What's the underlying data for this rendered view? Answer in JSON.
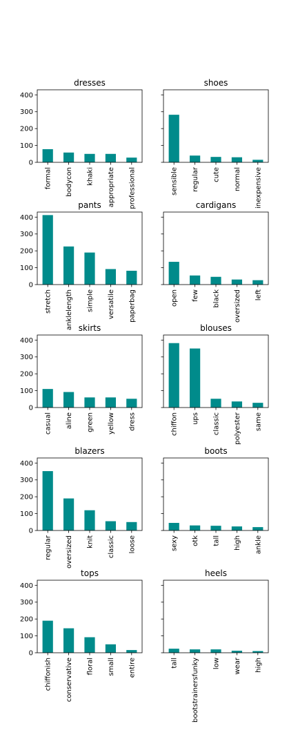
{
  "chart_data": [
    {
      "type": "bar",
      "title": "dresses",
      "categories": [
        "formal",
        "bodycon",
        "khaki",
        "appropriate",
        "professional"
      ],
      "values": [
        78,
        58,
        50,
        50,
        28
      ],
      "ylim": [
        0,
        430
      ],
      "yticks": [
        "0",
        "100",
        "200",
        "300",
        "400"
      ],
      "color": "#008B8B"
    },
    {
      "type": "bar",
      "title": "shoes",
      "categories": [
        "sensible",
        "regular",
        "cute",
        "normal",
        "inexpensive"
      ],
      "values": [
        282,
        40,
        32,
        30,
        15
      ],
      "ylim": [
        0,
        430
      ],
      "yticks": [
        "0",
        "100",
        "200",
        "300",
        "400"
      ],
      "color": "#008B8B"
    },
    {
      "type": "bar",
      "title": "pants",
      "categories": [
        "stretch",
        "anklelength",
        "simple",
        "versatile",
        "paperbag"
      ],
      "values": [
        412,
        226,
        190,
        92,
        82
      ],
      "ylim": [
        0,
        430
      ],
      "yticks": [
        "0",
        "100",
        "200",
        "300",
        "400"
      ],
      "color": "#008B8B"
    },
    {
      "type": "bar",
      "title": "cardigans",
      "categories": [
        "open",
        "few",
        "black",
        "oversized",
        "left"
      ],
      "values": [
        135,
        54,
        46,
        30,
        26
      ],
      "ylim": [
        0,
        430
      ],
      "yticks": [
        "0",
        "100",
        "200",
        "300",
        "400"
      ],
      "color": "#008B8B"
    },
    {
      "type": "bar",
      "title": "skirts",
      "categories": [
        "casual",
        "aline",
        "green",
        "yellow",
        "dress"
      ],
      "values": [
        110,
        92,
        60,
        60,
        52
      ],
      "ylim": [
        0,
        430
      ],
      "yticks": [
        "0",
        "100",
        "200",
        "300",
        "400"
      ],
      "color": "#008B8B"
    },
    {
      "type": "bar",
      "title": "blouses",
      "categories": [
        "chiffon",
        "ups",
        "classic",
        "polyester",
        "same"
      ],
      "values": [
        382,
        350,
        52,
        36,
        28
      ],
      "ylim": [
        0,
        430
      ],
      "yticks": [
        "0",
        "100",
        "200",
        "300",
        "400"
      ],
      "color": "#008B8B"
    },
    {
      "type": "bar",
      "title": "blazers",
      "categories": [
        "regular",
        "oversized",
        "knit",
        "classic",
        "loose"
      ],
      "values": [
        352,
        190,
        120,
        55,
        50
      ],
      "ylim": [
        0,
        430
      ],
      "yticks": [
        "0",
        "100",
        "200",
        "300",
        "400"
      ],
      "color": "#008B8B"
    },
    {
      "type": "bar",
      "title": "boots",
      "categories": [
        "sexy",
        "otk",
        "tall",
        "high",
        "ankle"
      ],
      "values": [
        45,
        30,
        28,
        24,
        20
      ],
      "ylim": [
        0,
        430
      ],
      "yticks": [
        "0",
        "100",
        "200",
        "300",
        "400"
      ],
      "color": "#008B8B"
    },
    {
      "type": "bar",
      "title": "tops",
      "categories": [
        "chiffonish",
        "conservative",
        "floral",
        "small",
        "entire"
      ],
      "values": [
        190,
        145,
        92,
        50,
        16
      ],
      "ylim": [
        0,
        430
      ],
      "yticks": [
        "0",
        "100",
        "200",
        "300",
        "400"
      ],
      "color": "#008B8B"
    },
    {
      "type": "bar",
      "title": "heels",
      "categories": [
        "tall",
        "bootstrainersfunky",
        "low",
        "wear",
        "high"
      ],
      "values": [
        24,
        20,
        20,
        12,
        10
      ],
      "ylim": [
        0,
        430
      ],
      "yticks": [
        "0",
        "100",
        "200",
        "300",
        "400"
      ],
      "color": "#008B8B"
    }
  ]
}
